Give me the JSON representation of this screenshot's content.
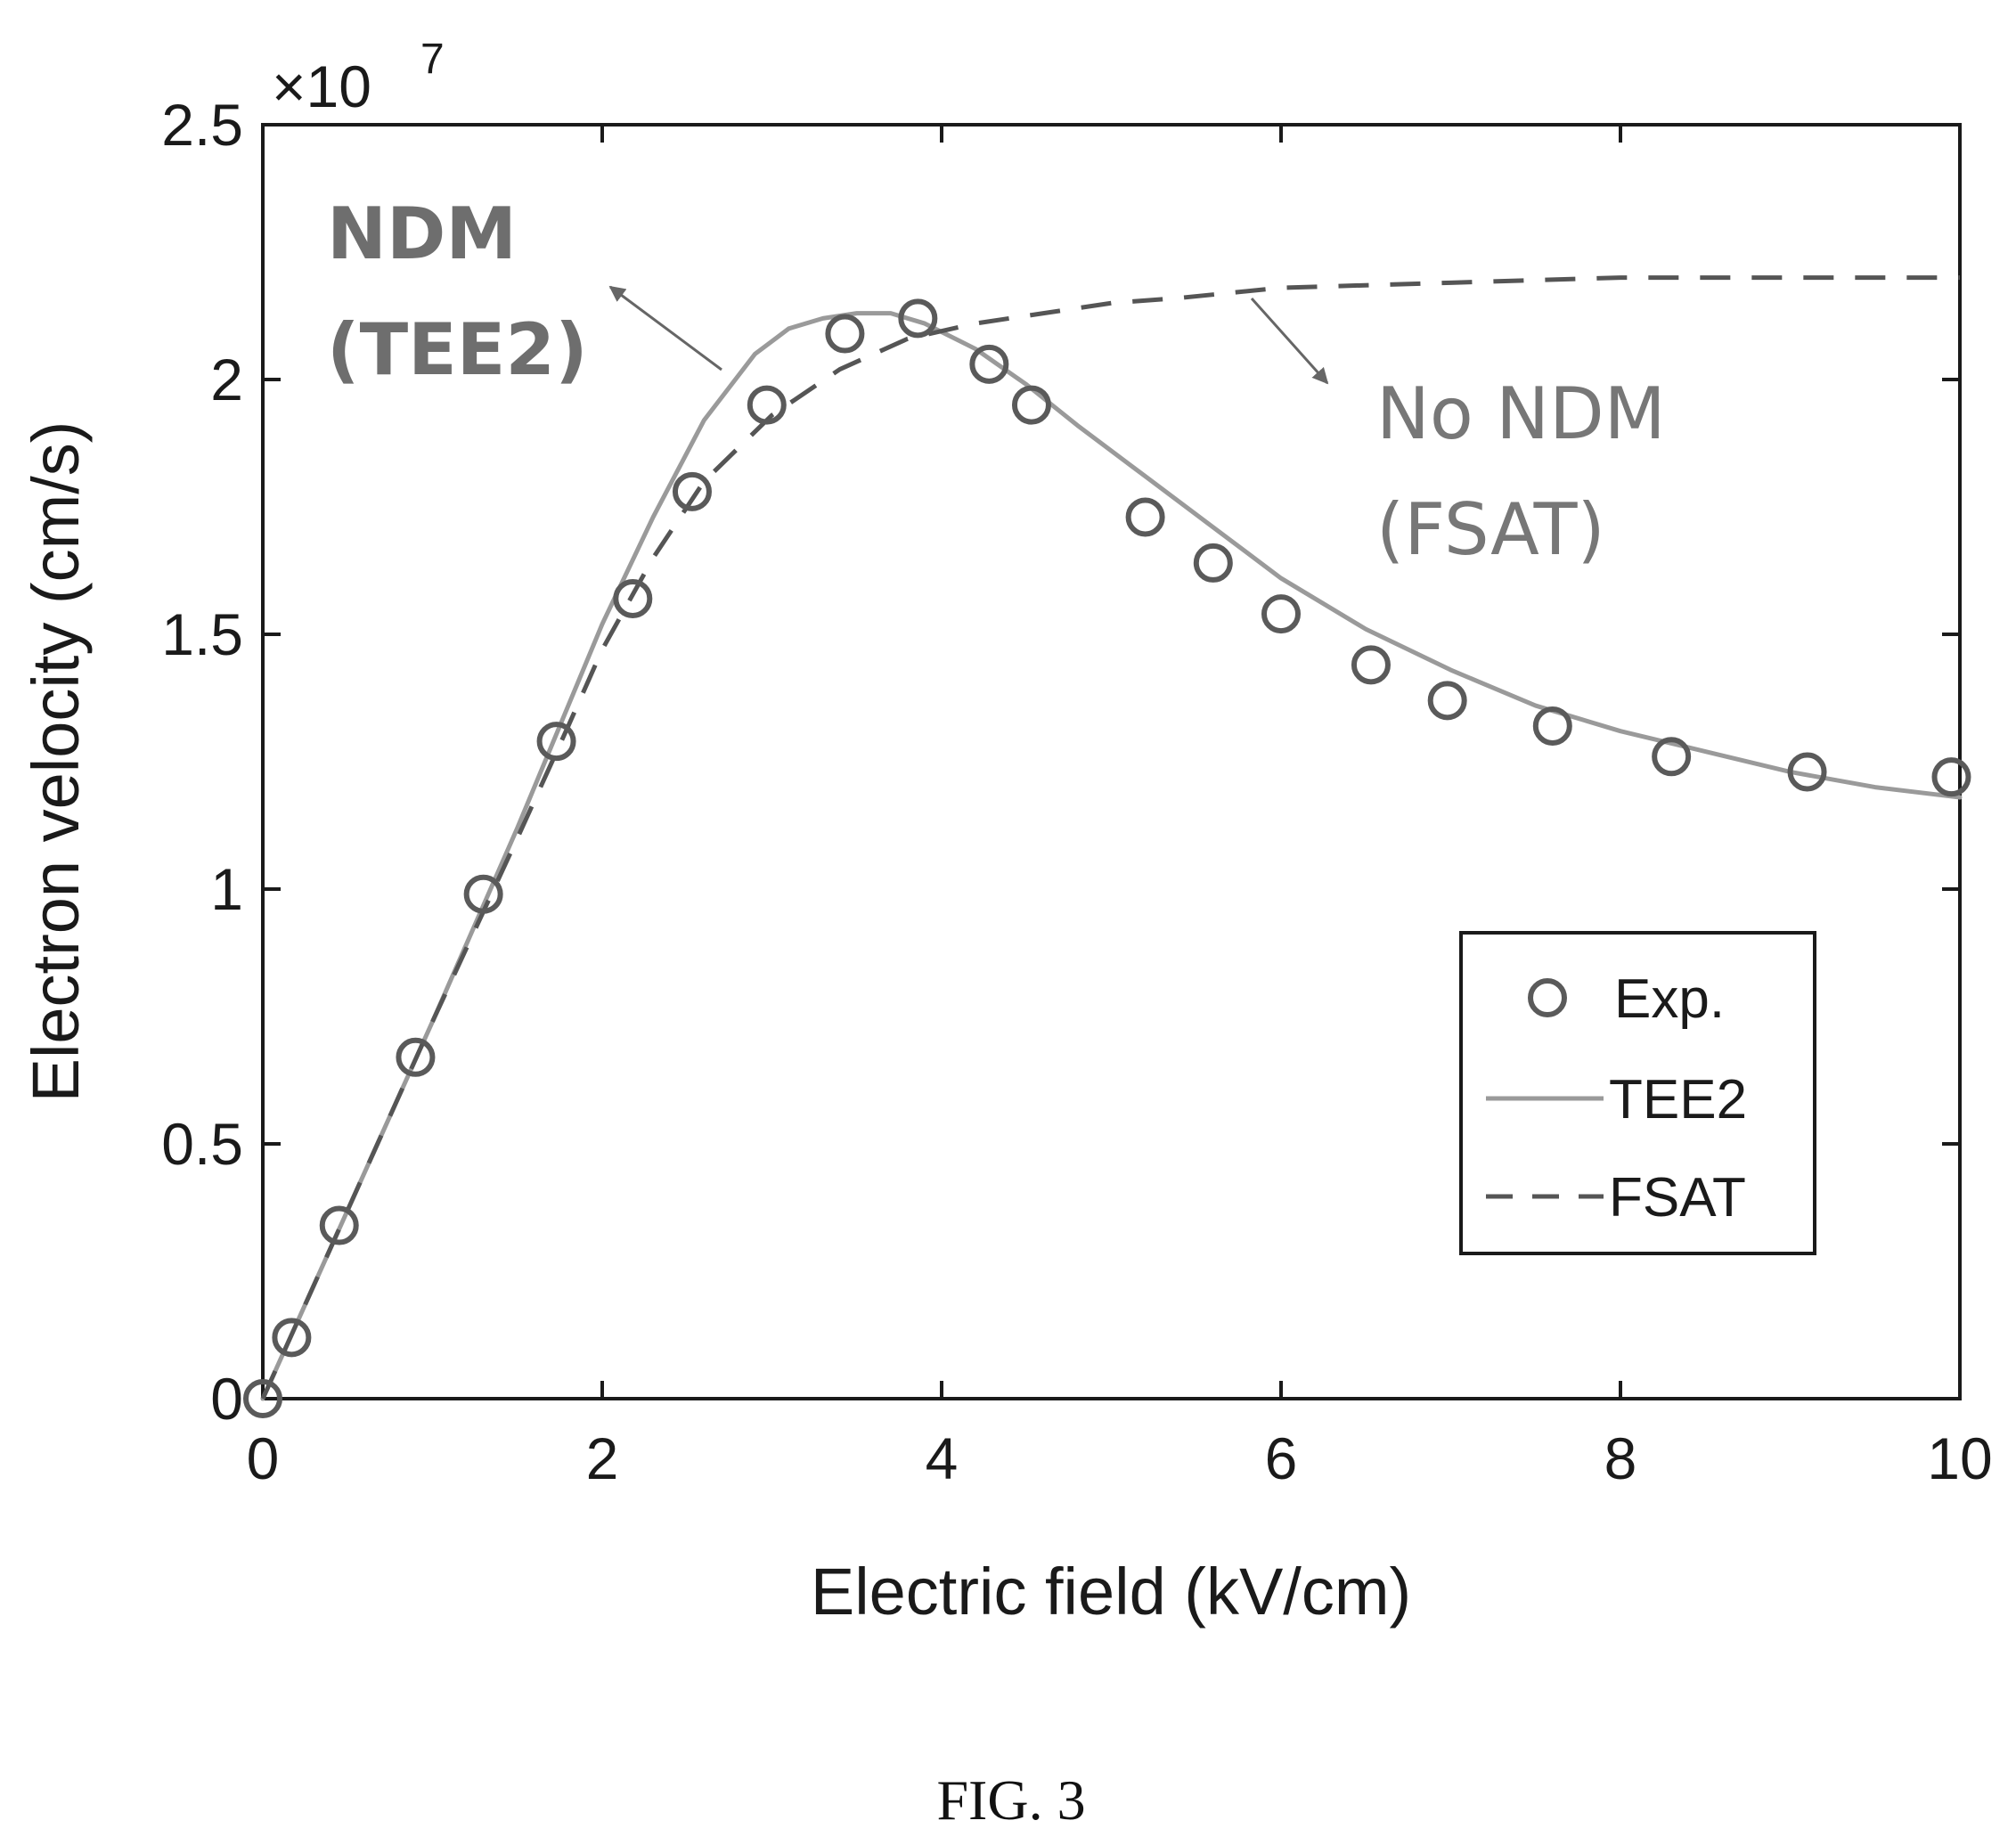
{
  "chart_data": {
    "type": "scatter",
    "xlabel": "Electric field (kV/cm)",
    "ylabel": "Electron velocity (cm/s)",
    "y_multiplier": "×10",
    "y_exponent": "7",
    "xlim": [
      0,
      10
    ],
    "ylim": [
      0,
      2.5
    ],
    "xticks": [
      0,
      2,
      4,
      6,
      8,
      10
    ],
    "xtick_labels": [
      "0",
      "2",
      "4",
      "6",
      "8",
      "10"
    ],
    "yticks": [
      0,
      0.5,
      1,
      1.5,
      2,
      2.5
    ],
    "ytick_labels": [
      "0",
      "0.5",
      "1",
      "1.5",
      "2",
      "2.5"
    ],
    "grid": false,
    "legend_position": "lower-right",
    "series": [
      {
        "name": "Exp.",
        "style": "circle-markers",
        "color": "#5a5a5a",
        "x": [
          0.0,
          0.17,
          0.45,
          0.9,
          1.3,
          1.73,
          2.18,
          2.53,
          2.97,
          3.43,
          3.86,
          4.28,
          4.53,
          5.2,
          5.6,
          6.0,
          6.53,
          6.98,
          7.6,
          8.3,
          9.1,
          9.95
        ],
        "y": [
          0.0,
          0.12,
          0.34,
          0.67,
          0.99,
          1.29,
          1.57,
          1.78,
          1.95,
          2.09,
          2.12,
          2.03,
          1.95,
          1.73,
          1.64,
          1.54,
          1.44,
          1.37,
          1.32,
          1.26,
          1.23,
          1.22
        ]
      },
      {
        "name": "TEE2",
        "style": "solid",
        "color": "#9a9a9a",
        "x": [
          0.0,
          0.5,
          1.0,
          1.5,
          1.8,
          2.0,
          2.3,
          2.6,
          2.9,
          3.1,
          3.3,
          3.5,
          3.7,
          3.9,
          4.2,
          4.5,
          4.8,
          5.2,
          5.6,
          6.0,
          6.5,
          7.0,
          7.5,
          8.0,
          8.5,
          9.0,
          9.5,
          10.0
        ],
        "y": [
          0.0,
          0.37,
          0.74,
          1.12,
          1.36,
          1.52,
          1.73,
          1.92,
          2.05,
          2.1,
          2.12,
          2.13,
          2.13,
          2.11,
          2.06,
          1.99,
          1.91,
          1.81,
          1.71,
          1.61,
          1.51,
          1.43,
          1.36,
          1.31,
          1.27,
          1.23,
          1.2,
          1.18
        ]
      },
      {
        "name": "FSAT",
        "style": "dashed",
        "color": "#555555",
        "x": [
          0.0,
          0.5,
          1.0,
          1.5,
          1.8,
          2.0,
          2.3,
          2.6,
          3.0,
          3.4,
          3.8,
          4.2,
          4.6,
          5.0,
          5.4,
          5.7,
          6.0,
          7.0,
          8.0,
          9.0,
          10.0
        ],
        "y": [
          0.0,
          0.37,
          0.74,
          1.1,
          1.32,
          1.47,
          1.65,
          1.8,
          1.93,
          2.02,
          2.08,
          2.11,
          2.13,
          2.15,
          2.16,
          2.17,
          2.18,
          2.19,
          2.2,
          2.2,
          2.2
        ]
      }
    ],
    "annotations": [
      {
        "lines": [
          "NDM",
          "(TEE2)"
        ],
        "bold": true
      },
      {
        "lines": [
          "No NDM",
          "(FSAT)"
        ],
        "bold": false
      }
    ]
  },
  "caption": "FIG. 3"
}
